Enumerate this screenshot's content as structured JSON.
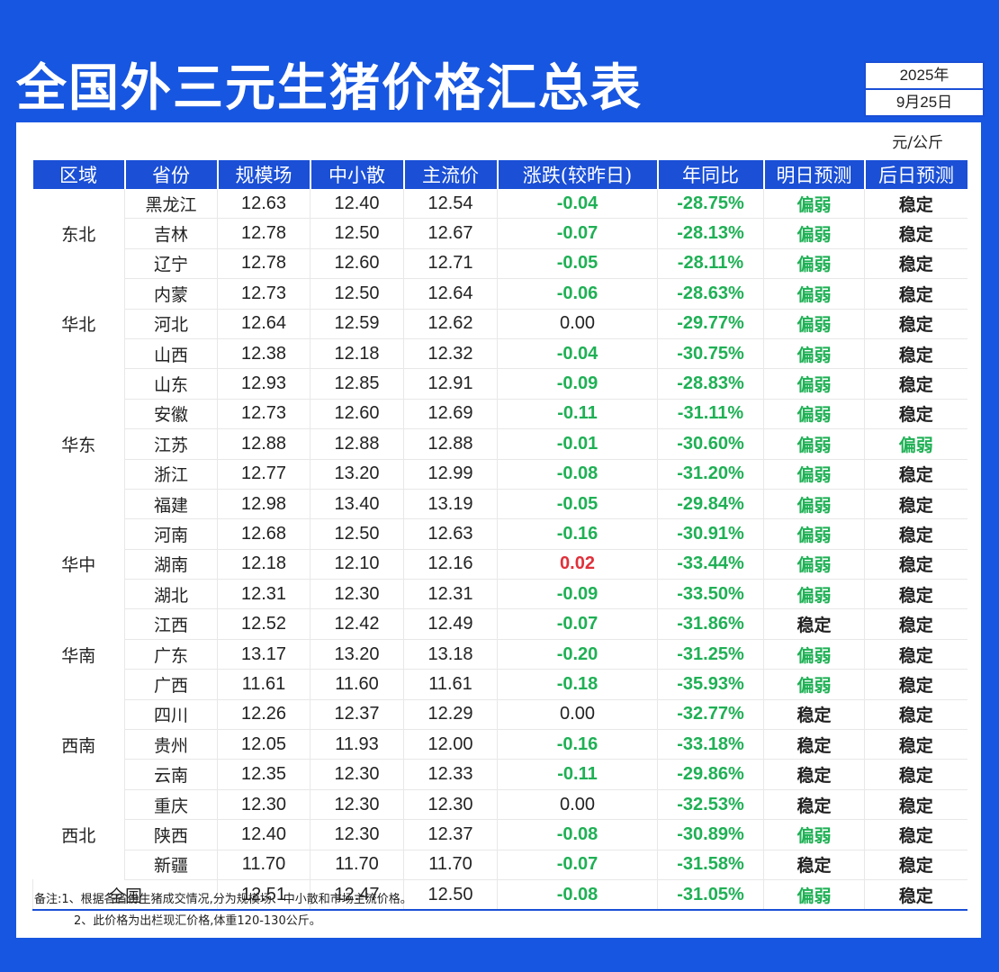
{
  "title": "全国外三元生猪价格汇总表",
  "date": {
    "year": "2025年",
    "day": "9月25日"
  },
  "unit": "元/公斤",
  "colors": {
    "background": "#1756e0",
    "header": "#1a4fd6",
    "down": "#1fb055",
    "up": "#e0303a"
  },
  "columns": [
    "区域",
    "省份",
    "规模场",
    "中小散",
    "主流价",
    "涨跌(较昨日)",
    "年同比",
    "明日预测",
    "后日预测"
  ],
  "regions": [
    {
      "name": "东北",
      "rows": 3
    },
    {
      "name": "华北",
      "rows": 3
    },
    {
      "name": "华东",
      "rows": 5
    },
    {
      "name": "华中",
      "rows": 3
    },
    {
      "name": "华南",
      "rows": 3
    },
    {
      "name": "西南",
      "rows": 3
    },
    {
      "name": "西北",
      "rows": 3
    }
  ],
  "rows": [
    {
      "province": "黑龙江",
      "large": "12.63",
      "small": "12.40",
      "main": "12.54",
      "change": "-0.04",
      "yoy": "-28.75%",
      "tomorrow": "偏弱",
      "after": "稳定"
    },
    {
      "province": "吉林",
      "large": "12.78",
      "small": "12.50",
      "main": "12.67",
      "change": "-0.07",
      "yoy": "-28.13%",
      "tomorrow": "偏弱",
      "after": "稳定"
    },
    {
      "province": "辽宁",
      "large": "12.78",
      "small": "12.60",
      "main": "12.71",
      "change": "-0.05",
      "yoy": "-28.11%",
      "tomorrow": "偏弱",
      "after": "稳定"
    },
    {
      "province": "内蒙",
      "large": "12.73",
      "small": "12.50",
      "main": "12.64",
      "change": "-0.06",
      "yoy": "-28.63%",
      "tomorrow": "偏弱",
      "after": "稳定"
    },
    {
      "province": "河北",
      "large": "12.64",
      "small": "12.59",
      "main": "12.62",
      "change": "0.00",
      "yoy": "-29.77%",
      "tomorrow": "偏弱",
      "after": "稳定"
    },
    {
      "province": "山西",
      "large": "12.38",
      "small": "12.18",
      "main": "12.32",
      "change": "-0.04",
      "yoy": "-30.75%",
      "tomorrow": "偏弱",
      "after": "稳定"
    },
    {
      "province": "山东",
      "large": "12.93",
      "small": "12.85",
      "main": "12.91",
      "change": "-0.09",
      "yoy": "-28.83%",
      "tomorrow": "偏弱",
      "after": "稳定"
    },
    {
      "province": "安徽",
      "large": "12.73",
      "small": "12.60",
      "main": "12.69",
      "change": "-0.11",
      "yoy": "-31.11%",
      "tomorrow": "偏弱",
      "after": "稳定"
    },
    {
      "province": "江苏",
      "large": "12.88",
      "small": "12.88",
      "main": "12.88",
      "change": "-0.01",
      "yoy": "-30.60%",
      "tomorrow": "偏弱",
      "after": "偏弱"
    },
    {
      "province": "浙江",
      "large": "12.77",
      "small": "13.20",
      "main": "12.99",
      "change": "-0.08",
      "yoy": "-31.20%",
      "tomorrow": "偏弱",
      "after": "稳定"
    },
    {
      "province": "福建",
      "large": "12.98",
      "small": "13.40",
      "main": "13.19",
      "change": "-0.05",
      "yoy": "-29.84%",
      "tomorrow": "偏弱",
      "after": "稳定"
    },
    {
      "province": "河南",
      "large": "12.68",
      "small": "12.50",
      "main": "12.63",
      "change": "-0.16",
      "yoy": "-30.91%",
      "tomorrow": "偏弱",
      "after": "稳定"
    },
    {
      "province": "湖南",
      "large": "12.18",
      "small": "12.10",
      "main": "12.16",
      "change": "0.02",
      "yoy": "-33.44%",
      "tomorrow": "偏弱",
      "after": "稳定"
    },
    {
      "province": "湖北",
      "large": "12.31",
      "small": "12.30",
      "main": "12.31",
      "change": "-0.09",
      "yoy": "-33.50%",
      "tomorrow": "偏弱",
      "after": "稳定"
    },
    {
      "province": "江西",
      "large": "12.52",
      "small": "12.42",
      "main": "12.49",
      "change": "-0.07",
      "yoy": "-31.86%",
      "tomorrow": "稳定",
      "after": "稳定"
    },
    {
      "province": "广东",
      "large": "13.17",
      "small": "13.20",
      "main": "13.18",
      "change": "-0.20",
      "yoy": "-31.25%",
      "tomorrow": "偏弱",
      "after": "稳定"
    },
    {
      "province": "广西",
      "large": "11.61",
      "small": "11.60",
      "main": "11.61",
      "change": "-0.18",
      "yoy": "-35.93%",
      "tomorrow": "偏弱",
      "after": "稳定"
    },
    {
      "province": "四川",
      "large": "12.26",
      "small": "12.37",
      "main": "12.29",
      "change": "0.00",
      "yoy": "-32.77%",
      "tomorrow": "稳定",
      "after": "稳定"
    },
    {
      "province": "贵州",
      "large": "12.05",
      "small": "11.93",
      "main": "12.00",
      "change": "-0.16",
      "yoy": "-33.18%",
      "tomorrow": "稳定",
      "after": "稳定"
    },
    {
      "province": "云南",
      "large": "12.35",
      "small": "12.30",
      "main": "12.33",
      "change": "-0.11",
      "yoy": "-29.86%",
      "tomorrow": "稳定",
      "after": "稳定"
    },
    {
      "province": "重庆",
      "large": "12.30",
      "small": "12.30",
      "main": "12.30",
      "change": "0.00",
      "yoy": "-32.53%",
      "tomorrow": "稳定",
      "after": "稳定"
    },
    {
      "province": "陕西",
      "large": "12.40",
      "small": "12.30",
      "main": "12.37",
      "change": "-0.08",
      "yoy": "-30.89%",
      "tomorrow": "偏弱",
      "after": "稳定"
    },
    {
      "province": "新疆",
      "large": "11.70",
      "small": "11.70",
      "main": "11.70",
      "change": "-0.07",
      "yoy": "-31.58%",
      "tomorrow": "稳定",
      "after": "稳定"
    }
  ],
  "total": {
    "label": "全国",
    "large": "12.51",
    "small": "12.47",
    "main": "12.50",
    "change": "-0.08",
    "yoy": "-31.05%",
    "tomorrow": "偏弱",
    "after": "稳定"
  },
  "notes": [
    "备注:1、根据各省份生猪成交情况,分为规模场、中小散和市场主流价格。",
    "2、此价格为出栏现汇价格,体重120-130公斤。"
  ]
}
